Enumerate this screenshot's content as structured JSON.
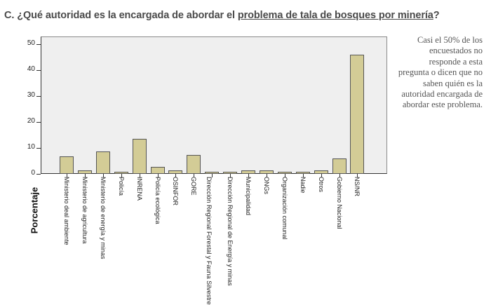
{
  "question": {
    "prefix": "C.  ¿Qué autoridad es la encargada de abordar el ",
    "underlined": "problema de tala de bosques por minería",
    "suffix": "?"
  },
  "note": "Casi el 50% de los encuestados no responde a esta pregunta o dicen que no saben quién es la autoridad encargada de abordar este problema.",
  "colors": {
    "bar": "#d3cc96",
    "bar_border": "#555555",
    "plot_bg": "#efefef",
    "text": "#4a4a4a"
  },
  "chart_data": {
    "type": "bar",
    "title": "¿Qué autoridad es la encargada de abordar el problema de tala de bosques por minería?",
    "xlabel": "",
    "ylabel": "Porcentaje",
    "ylim": [
      0,
      52
    ],
    "yticks": [
      0,
      10,
      20,
      30,
      40,
      50
    ],
    "grid": false,
    "legend": null,
    "categories": [
      "Ministerio deal ambiente",
      "Ministerio de agricultura",
      "Ministerio de energía y minas",
      "Policía",
      "INRENA",
      "Policía ecológica",
      "OSINFOR",
      "GORE",
      "Dirección Regional Forestal y Fauna Silvestre",
      "Dirección Regional de Energía y minas",
      "Municipalidad",
      "ONGs",
      "Organización comunal",
      "Nadie",
      "Otros",
      "Gobierno Nacional",
      "NS/NR"
    ],
    "values": [
      6.7,
      1.4,
      8.7,
      0.7,
      13.4,
      2.8,
      1.4,
      7.4,
      0.7,
      0.7,
      1.4,
      1.4,
      0.7,
      0.7,
      1.4,
      6.0,
      45.9
    ]
  }
}
